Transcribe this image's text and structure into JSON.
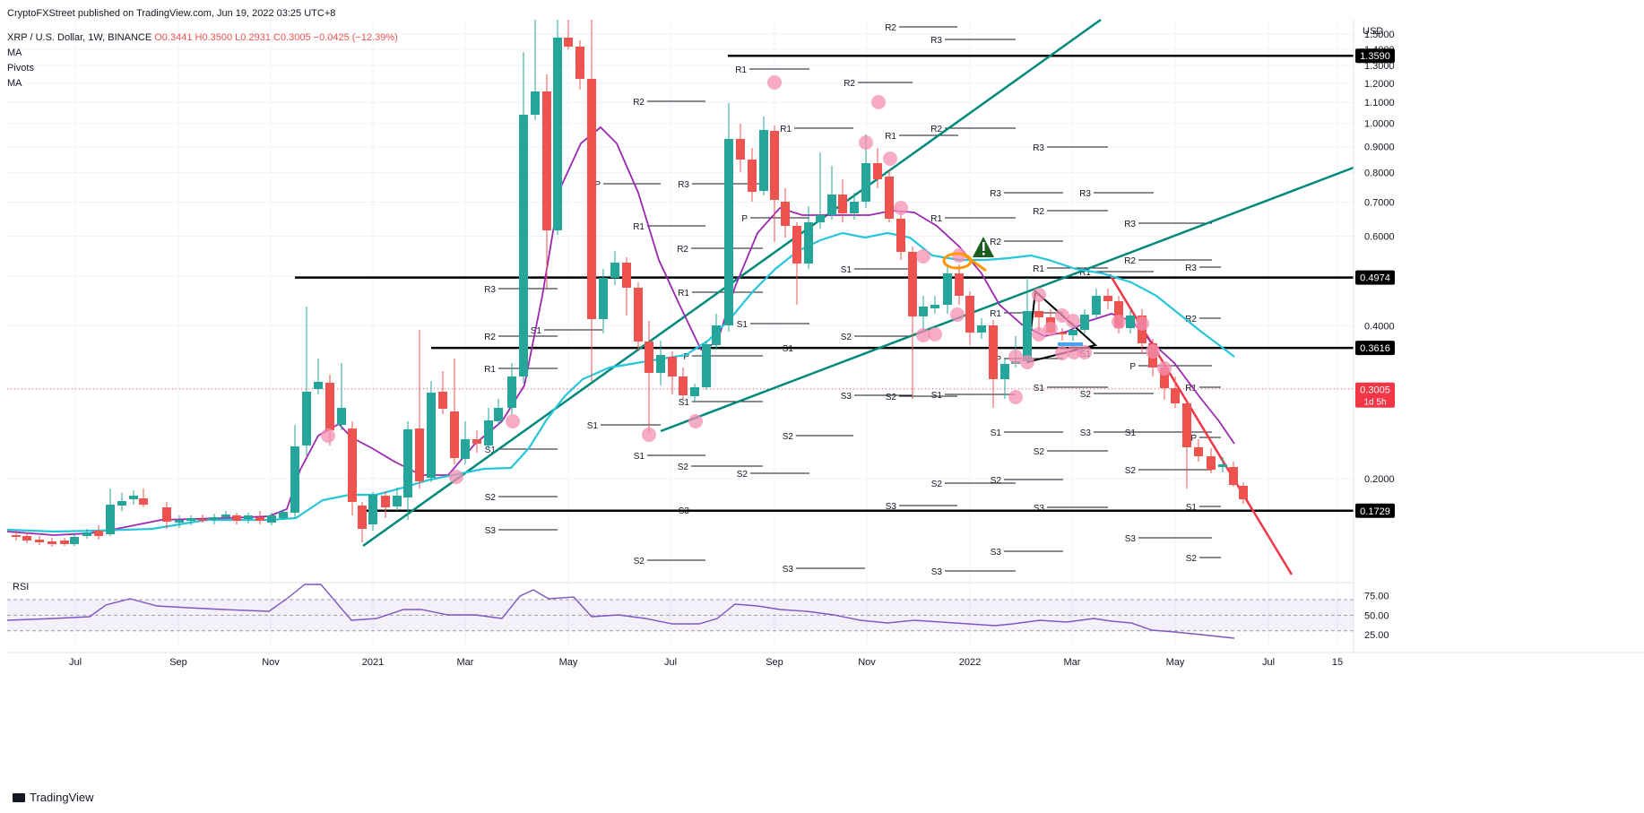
{
  "header": {
    "published": "CryptoFXStreet published on TradingView.com, Jun 19, 2022 03:25 UTC+8",
    "symbol": "XRP / U.S. Dollar, 1W, BINANCE",
    "open": "O0.3441",
    "high": "H0.3500",
    "low": "L0.2931",
    "close": "C0.3005",
    "change": "−0.0425 (−12.39%)",
    "indicators": [
      "MA",
      "Pivots",
      "MA"
    ]
  },
  "price_axis": {
    "currency": "USD",
    "ticks": [
      "1.5000",
      "1.4000",
      "1.3000",
      "1.2000",
      "1.1000",
      "1.0000",
      "0.9000",
      "0.8000",
      "0.7000",
      "0.6000",
      "0.5000",
      "0.4000",
      "0.3000",
      "0.2000"
    ],
    "levels": [
      {
        "label": "1.3590",
        "value": 1.359
      },
      {
        "label": "0.4974",
        "value": 0.4974
      },
      {
        "label": "0.3616",
        "value": 0.3616
      },
      {
        "label": "0.1729",
        "value": 0.1729
      }
    ],
    "current": {
      "label": "0.3005",
      "countdown": "1d 5h",
      "value": 0.3005
    }
  },
  "time_axis": [
    "Jul",
    "Sep",
    "Nov",
    "2021",
    "Mar",
    "May",
    "Jul",
    "Sep",
    "Nov",
    "2022",
    "Mar",
    "May",
    "Jul",
    "15"
  ],
  "rsi": {
    "label": "RSI",
    "ticks": [
      "75.00",
      "50.00",
      "25.00"
    ]
  },
  "chart_data": {
    "type": "candlestick",
    "title": "XRP / U.S. Dollar, 1W, BINANCE",
    "ylabel": "USD",
    "ylim": [
      0.13,
      1.6
    ],
    "x_range": [
      "2020-06",
      "2022-07"
    ],
    "last_candle": {
      "open": 0.3441,
      "high": 0.35,
      "low": 0.2931,
      "close": 0.3005
    },
    "horizontal_levels": [
      1.359,
      0.4974,
      0.3616,
      0.1729
    ],
    "pivot_labels": [
      "P",
      "R1",
      "R2",
      "R3",
      "S1",
      "S2",
      "S3"
    ],
    "series": [
      {
        "name": "MA"
      },
      {
        "name": "MA"
      },
      {
        "name": "RSI"
      }
    ],
    "grid": true,
    "brand": "TradingView"
  },
  "footer": {
    "brand": "TradingView"
  },
  "colors": {
    "up": "#26a69a",
    "down": "#ef5350",
    "ma_purple": "#9c27b0",
    "ma_cyan": "#26c6da",
    "trend_teal": "#00897b",
    "trend_red": "#f23645",
    "level": "#000000",
    "rsi": "#7e57c2"
  }
}
